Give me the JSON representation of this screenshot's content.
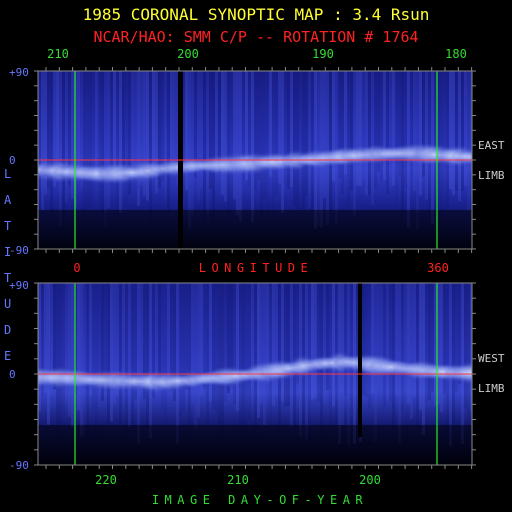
{
  "title": "1985 CORONAL SYNOPTIC MAP : 3.4 Rsun",
  "subtitle": "NCAR/HAO: SMM C/P -- ROTATION # 1764",
  "colors": {
    "background": "#000000",
    "title": "#ffff33",
    "subtitle": "#ff2222",
    "top_ticks": "#33dd33",
    "lat_ticks": "#6677ff",
    "side_labels": "#cccccc",
    "red_text": "#ff2222",
    "bottom_text": "#33dd33",
    "green_line": "#22ee22",
    "red_line": "#ff3344",
    "frame": "#888888"
  },
  "chart_data": [
    {
      "type": "heatmap",
      "panel": "east",
      "limb_label_1": "EAST",
      "limb_label_2": "LIMB",
      "ylim": [
        -90,
        90
      ],
      "y_ticks": [
        "+90",
        "0",
        "-90"
      ],
      "x_ticks_top": [
        "210",
        "200",
        "190",
        "180"
      ],
      "x_ticks_bottom": [
        "0",
        "360"
      ],
      "xlabel": "LONGITUDE",
      "ylabel": "LATITUDE",
      "grid": false,
      "equator_line": true,
      "streamer_latitude_profile": [
        -10,
        -12,
        -14,
        -13,
        -9,
        -6,
        -5,
        -3,
        -1,
        1,
        4,
        6,
        7,
        5,
        3
      ]
    },
    {
      "type": "heatmap",
      "panel": "west",
      "limb_label_1": "WEST",
      "limb_label_2": "LIMB",
      "ylim": [
        -90,
        90
      ],
      "y_ticks": [
        "+90",
        "0",
        "-90"
      ],
      "x_ticks_bottom": [
        "220",
        "210",
        "200"
      ],
      "xlabel": "IMAGE DAY-OF-YEAR",
      "grid": false,
      "equator_line": true,
      "streamer_latitude_profile": [
        -3,
        -4,
        -6,
        -7,
        -8,
        -6,
        -3,
        0,
        5,
        10,
        12,
        8,
        5,
        2,
        1
      ]
    }
  ],
  "y_axis_letters": [
    "L",
    "A",
    "T",
    "I",
    "T",
    "U",
    "D",
    "E"
  ]
}
